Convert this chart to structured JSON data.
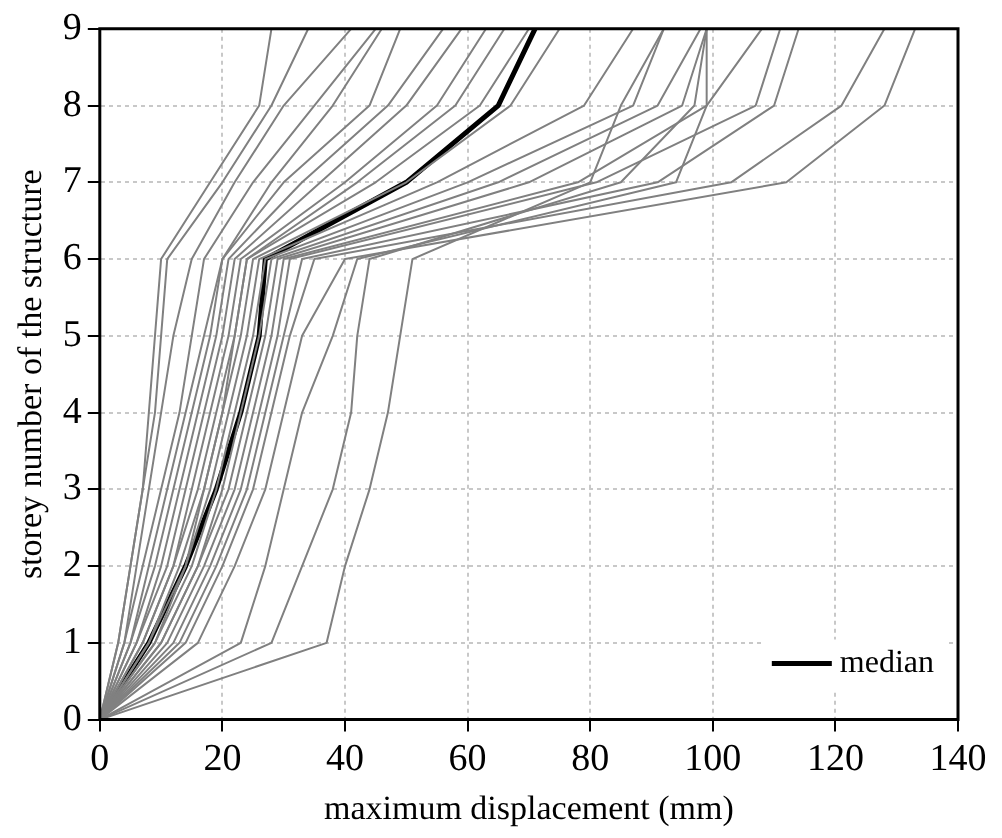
{
  "chart_data": {
    "type": "line",
    "xlabel": "maximum displacement (mm)",
    "ylabel": "storey number of the structure",
    "xlim": [
      0,
      140
    ],
    "xticks": [
      0,
      20,
      40,
      60,
      80,
      100,
      120,
      140
    ],
    "ylim": [
      0,
      9
    ],
    "yticks": [
      0,
      1,
      2,
      3,
      4,
      5,
      6,
      7,
      8,
      9
    ],
    "grid": true,
    "legend": "bottom right",
    "marker": "none",
    "line_style": "solid",
    "series": [
      {
        "color": "#808080",
        "x": [
          0,
          3,
          5,
          7,
          8,
          9,
          10,
          18,
          26,
          28
        ],
        "values": [
          0,
          1,
          2,
          3,
          4,
          5,
          6,
          7,
          8,
          9
        ]
      },
      {
        "color": "#808080",
        "x": [
          0,
          3,
          5,
          7,
          9,
          10,
          11,
          20,
          28,
          34
        ],
        "values": [
          0,
          1,
          2,
          3,
          4,
          5,
          6,
          7,
          8,
          9
        ]
      },
      {
        "color": "#808080",
        "x": [
          0,
          4,
          6,
          8,
          10,
          12,
          15,
          22,
          30,
          41
        ],
        "values": [
          0,
          1,
          2,
          3,
          4,
          5,
          6,
          7,
          8,
          9
        ]
      },
      {
        "color": "#808080",
        "x": [
          0,
          4,
          7,
          10,
          13,
          15,
          17,
          25,
          35,
          45
        ],
        "values": [
          0,
          1,
          2,
          3,
          4,
          5,
          6,
          7,
          8,
          9
        ]
      },
      {
        "color": "#808080",
        "x": [
          0,
          5,
          8,
          11,
          14,
          17,
          20,
          28,
          38,
          46
        ],
        "values": [
          0,
          1,
          2,
          3,
          4,
          5,
          6,
          7,
          8,
          9
        ]
      },
      {
        "color": "#808080",
        "x": [
          0,
          5,
          9,
          12,
          15,
          18,
          20,
          30,
          44,
          49
        ],
        "values": [
          0,
          1,
          2,
          3,
          4,
          5,
          6,
          7,
          8,
          9
        ]
      },
      {
        "color": "#808080",
        "x": [
          0,
          6,
          10,
          13,
          16,
          19,
          21,
          33,
          47,
          56
        ],
        "values": [
          0,
          1,
          2,
          3,
          4,
          5,
          6,
          7,
          8,
          9
        ]
      },
      {
        "color": "#808080",
        "x": [
          0,
          6,
          11,
          14,
          17,
          20,
          22,
          36,
          50,
          59
        ],
        "values": [
          0,
          1,
          2,
          3,
          4,
          5,
          6,
          7,
          8,
          9
        ]
      },
      {
        "color": "#808080",
        "x": [
          0,
          7,
          12,
          15,
          18,
          21,
          23,
          40,
          55,
          63
        ],
        "values": [
          0,
          1,
          2,
          3,
          4,
          5,
          6,
          7,
          8,
          9
        ]
      },
      {
        "color": "#808080",
        "x": [
          0,
          9,
          14,
          17,
          20,
          22,
          24,
          42,
          58,
          66
        ],
        "values": [
          0,
          1,
          2,
          3,
          4,
          5,
          6,
          7,
          8,
          9
        ]
      },
      {
        "color": "#808080",
        "x": [
          0,
          7,
          12,
          16,
          19,
          22,
          24,
          45,
          62,
          70
        ],
        "values": [
          0,
          1,
          2,
          3,
          4,
          5,
          6,
          7,
          8,
          9
        ]
      },
      {
        "color": "#808080",
        "x": [
          0,
          8,
          13,
          17,
          20,
          23,
          25,
          50,
          67,
          75
        ],
        "values": [
          0,
          1,
          2,
          3,
          4,
          5,
          6,
          7,
          8,
          9
        ]
      },
      {
        "color": "#808080",
        "x": [
          0,
          8,
          14,
          18,
          21,
          24,
          26,
          55,
          79,
          87
        ],
        "values": [
          0,
          1,
          2,
          3,
          4,
          5,
          6,
          7,
          8,
          9
        ]
      },
      {
        "color": "#808080",
        "x": [
          0,
          9,
          15,
          19,
          22,
          25,
          27,
          60,
          87,
          92
        ],
        "values": [
          0,
          1,
          2,
          3,
          4,
          5,
          6,
          7,
          8,
          9
        ]
      },
      {
        "color": "#808080",
        "x": [
          0,
          10,
          16,
          20,
          23,
          26,
          28,
          65,
          91,
          98
        ],
        "values": [
          0,
          1,
          2,
          3,
          4,
          5,
          6,
          7,
          8,
          9
        ]
      },
      {
        "color": "#808080",
        "x": [
          0,
          10,
          16,
          21,
          24,
          27,
          29,
          70,
          95,
          99
        ],
        "values": [
          0,
          1,
          2,
          3,
          4,
          5,
          6,
          7,
          8,
          9
        ]
      },
      {
        "color": "#808080",
        "x": [
          0,
          11,
          17,
          22,
          25,
          28,
          30,
          78,
          99,
          108
        ],
        "values": [
          0,
          1,
          2,
          3,
          4,
          5,
          6,
          7,
          8,
          9
        ]
      },
      {
        "color": "#808080",
        "x": [
          0,
          12,
          18,
          23,
          26,
          29,
          31,
          81,
          107,
          111
        ],
        "values": [
          0,
          1,
          2,
          3,
          4,
          5,
          6,
          7,
          8,
          9
        ]
      },
      {
        "color": "#808080",
        "x": [
          0,
          13,
          19,
          24,
          27,
          30,
          33,
          91,
          110,
          114
        ],
        "values": [
          0,
          1,
          2,
          3,
          4,
          5,
          6,
          7,
          8,
          9
        ]
      },
      {
        "color": "#808080",
        "x": [
          0,
          14,
          20,
          25,
          28,
          31,
          35,
          103,
          121,
          128
        ],
        "values": [
          0,
          1,
          2,
          3,
          4,
          5,
          6,
          7,
          8,
          9
        ]
      },
      {
        "color": "#808080",
        "x": [
          0,
          16,
          22,
          27,
          30,
          33,
          40,
          112,
          128,
          133
        ],
        "values": [
          0,
          1,
          2,
          3,
          4,
          5,
          6,
          7,
          8,
          9
        ]
      },
      {
        "color": "#808080",
        "x": [
          0,
          23,
          27,
          30,
          33,
          38,
          42,
          94,
          99,
          99
        ],
        "values": [
          0,
          1,
          2,
          3,
          4,
          5,
          6,
          7,
          8,
          9
        ]
      },
      {
        "color": "#808080",
        "x": [
          0,
          28,
          33,
          38,
          41,
          42,
          44,
          85,
          97,
          99
        ],
        "values": [
          0,
          1,
          2,
          3,
          4,
          5,
          6,
          7,
          8,
          9
        ]
      },
      {
        "color": "#808080",
        "x": [
          0,
          37,
          40,
          44,
          47,
          49,
          51,
          80,
          85,
          92
        ],
        "values": [
          0,
          1,
          2,
          3,
          4,
          5,
          6,
          7,
          8,
          9
        ]
      },
      {
        "name": "median",
        "color": "#000000",
        "x": [
          0,
          8,
          14,
          19,
          23,
          26,
          27,
          50,
          65,
          71
        ],
        "values": [
          0,
          1,
          2,
          3,
          4,
          5,
          6,
          7,
          8,
          9
        ]
      }
    ]
  }
}
